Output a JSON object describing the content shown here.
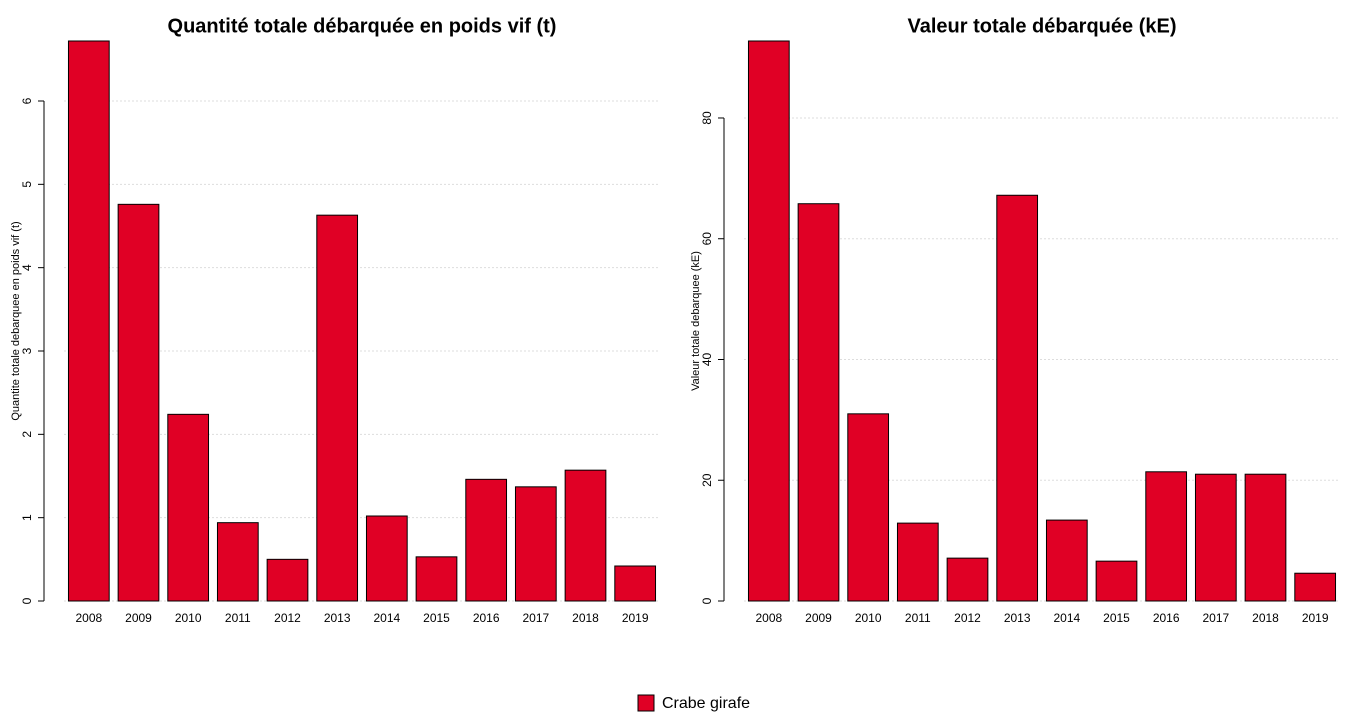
{
  "chart_data": [
    {
      "type": "bar",
      "title": "Quantité totale débarquée en poids vif (t)",
      "y_label": "Quantite totale debarquee en poids vif (t)",
      "categories": [
        "2008",
        "2009",
        "2010",
        "2011",
        "2012",
        "2013",
        "2014",
        "2015",
        "2016",
        "2017",
        "2018",
        "2019"
      ],
      "series": [
        {
          "name": "Crabe girafe",
          "color": "#e00025",
          "values": [
            6.72,
            4.76,
            2.24,
            0.94,
            0.5,
            4.63,
            1.02,
            0.53,
            1.46,
            1.37,
            1.57,
            0.42
          ]
        }
      ],
      "ylim": [
        0,
        6.72
      ],
      "yticks": [
        0,
        1,
        2,
        3,
        4,
        5,
        6
      ],
      "grid": true
    },
    {
      "type": "bar",
      "title": "Valeur totale débarquée (kE)",
      "y_label": "Valeur totale debarquee (kE)",
      "categories": [
        "2008",
        "2009",
        "2010",
        "2011",
        "2012",
        "2013",
        "2014",
        "2015",
        "2016",
        "2017",
        "2018",
        "2019"
      ],
      "series": [
        {
          "name": "Crabe girafe",
          "color": "#e00025",
          "values": [
            92.75,
            65.8,
            31.0,
            12.9,
            7.1,
            67.2,
            13.4,
            6.6,
            21.4,
            21.0,
            21.0,
            4.6
          ]
        }
      ],
      "ylim": [
        0,
        92.75
      ],
      "yticks": [
        0,
        20,
        40,
        60,
        80
      ],
      "grid": true
    }
  ]
}
